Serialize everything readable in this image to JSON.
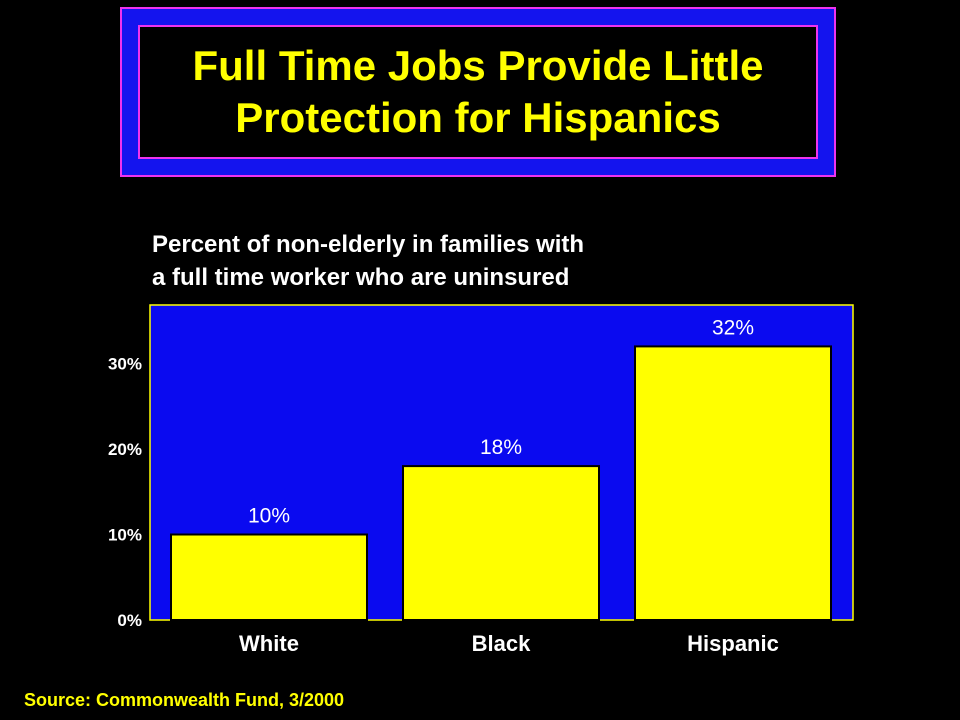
{
  "title": {
    "line1": "Full Time Jobs Provide Little",
    "line2": "Protection for Hispanics"
  },
  "subtitle": {
    "line1": "Percent of non-elderly in families with",
    "line2": "a full time worker who are uninsured"
  },
  "source": "Source: Commonwealth Fund, 3/2000",
  "colors": {
    "background": "#000000",
    "plot_background": "#0a0af0",
    "bar": "#ffff00",
    "title_text": "#ffff00",
    "title_border": "#ee33ee",
    "label_text": "#ffffff"
  },
  "chart_data": {
    "type": "bar",
    "categories": [
      "White",
      "Black",
      "Hispanic"
    ],
    "values": [
      10,
      18,
      32
    ],
    "value_labels": [
      "10%",
      "18%",
      "32%"
    ],
    "yticks": [
      {
        "value": 0,
        "label": "0%"
      },
      {
        "value": 10,
        "label": "10%"
      },
      {
        "value": 20,
        "label": "20%"
      },
      {
        "value": 30,
        "label": "30%"
      }
    ],
    "ylim": [
      0,
      37
    ],
    "grid": false,
    "legend": "none"
  }
}
